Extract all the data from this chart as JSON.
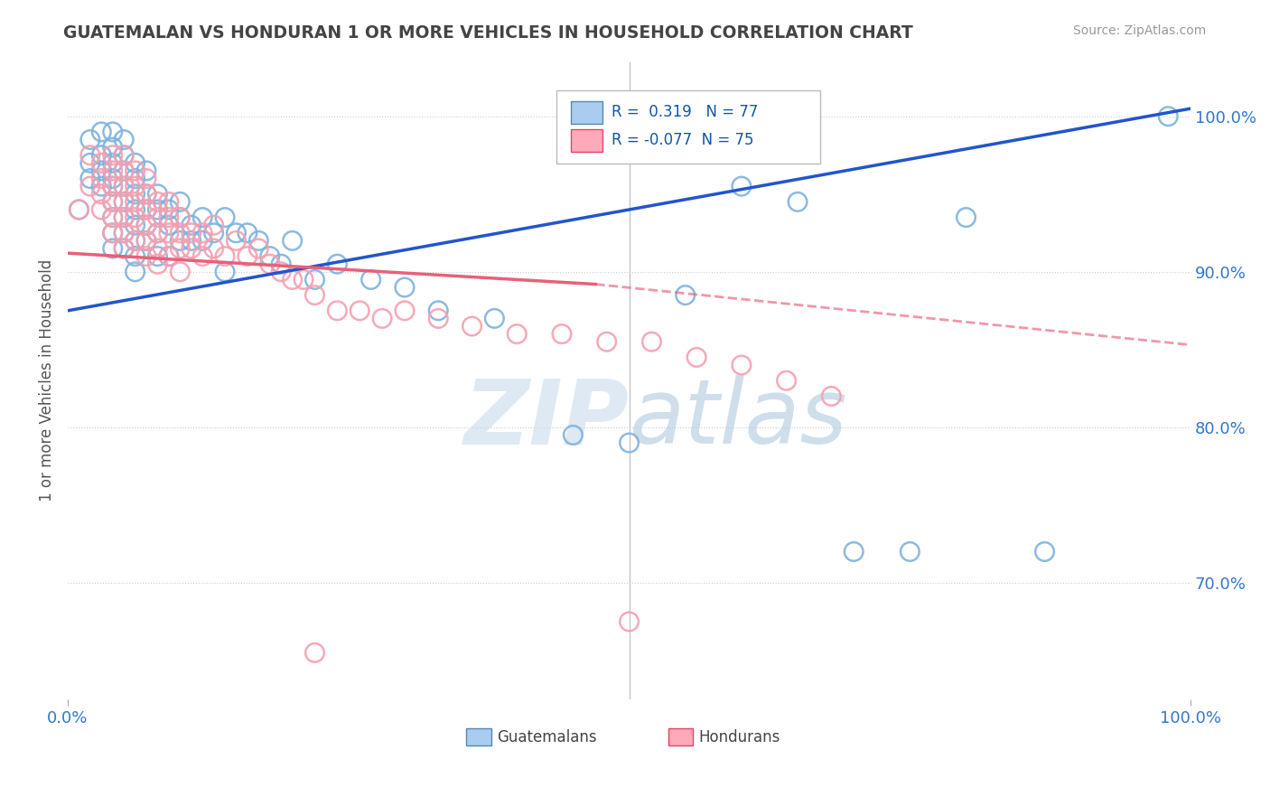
{
  "title": "GUATEMALAN VS HONDURAN 1 OR MORE VEHICLES IN HOUSEHOLD CORRELATION CHART",
  "source": "Source: ZipAtlas.com",
  "ylabel": "1 or more Vehicles in Household",
  "xlim": [
    0.0,
    1.0
  ],
  "ylim": [
    0.625,
    1.035
  ],
  "ytick_labels": [
    "70.0%",
    "80.0%",
    "90.0%",
    "100.0%"
  ],
  "ytick_positions": [
    0.7,
    0.8,
    0.9,
    1.0
  ],
  "grid_color": "#cccccc",
  "background_color": "#ffffff",
  "blue_scatter_color": "#7fb3e0",
  "pink_scatter_color": "#f5a0b0",
  "blue_line_color": "#2255cc",
  "pink_line_color": "#e8607a",
  "R_blue": 0.319,
  "N_blue": 77,
  "R_pink": -0.077,
  "N_pink": 75,
  "watermark_zip": "ZIP",
  "watermark_atlas": "atlas",
  "blue_x": [
    0.01,
    0.02,
    0.02,
    0.02,
    0.03,
    0.03,
    0.03,
    0.03,
    0.04,
    0.04,
    0.04,
    0.04,
    0.04,
    0.04,
    0.04,
    0.04,
    0.04,
    0.05,
    0.05,
    0.05,
    0.05,
    0.05,
    0.05,
    0.05,
    0.05,
    0.06,
    0.06,
    0.06,
    0.06,
    0.06,
    0.06,
    0.06,
    0.06,
    0.07,
    0.07,
    0.07,
    0.07,
    0.07,
    0.08,
    0.08,
    0.08,
    0.08,
    0.09,
    0.09,
    0.09,
    0.1,
    0.1,
    0.1,
    0.11,
    0.11,
    0.12,
    0.12,
    0.13,
    0.14,
    0.14,
    0.15,
    0.16,
    0.17,
    0.18,
    0.19,
    0.2,
    0.22,
    0.24,
    0.27,
    0.3,
    0.33,
    0.38,
    0.45,
    0.5,
    0.55,
    0.6,
    0.65,
    0.7,
    0.75,
    0.8,
    0.87,
    0.98
  ],
  "blue_y": [
    0.94,
    0.985,
    0.97,
    0.96,
    0.99,
    0.975,
    0.965,
    0.955,
    0.99,
    0.98,
    0.97,
    0.96,
    0.955,
    0.945,
    0.935,
    0.925,
    0.915,
    0.985,
    0.975,
    0.965,
    0.955,
    0.945,
    0.935,
    0.925,
    0.915,
    0.97,
    0.96,
    0.95,
    0.94,
    0.93,
    0.92,
    0.91,
    0.9,
    0.965,
    0.95,
    0.94,
    0.93,
    0.92,
    0.95,
    0.94,
    0.925,
    0.91,
    0.94,
    0.93,
    0.91,
    0.945,
    0.935,
    0.92,
    0.93,
    0.92,
    0.935,
    0.92,
    0.925,
    0.935,
    0.9,
    0.925,
    0.925,
    0.92,
    0.91,
    0.905,
    0.92,
    0.895,
    0.905,
    0.895,
    0.89,
    0.875,
    0.87,
    0.795,
    0.79,
    0.885,
    0.955,
    0.945,
    0.72,
    0.72,
    0.935,
    0.72,
    1.0
  ],
  "pink_x": [
    0.01,
    0.02,
    0.02,
    0.03,
    0.03,
    0.03,
    0.03,
    0.04,
    0.04,
    0.04,
    0.04,
    0.04,
    0.04,
    0.05,
    0.05,
    0.05,
    0.05,
    0.05,
    0.05,
    0.05,
    0.06,
    0.06,
    0.06,
    0.06,
    0.06,
    0.07,
    0.07,
    0.07,
    0.07,
    0.07,
    0.07,
    0.08,
    0.08,
    0.08,
    0.08,
    0.08,
    0.09,
    0.09,
    0.09,
    0.09,
    0.1,
    0.1,
    0.1,
    0.1,
    0.11,
    0.11,
    0.12,
    0.12,
    0.13,
    0.13,
    0.14,
    0.15,
    0.16,
    0.17,
    0.18,
    0.19,
    0.2,
    0.21,
    0.22,
    0.24,
    0.26,
    0.28,
    0.3,
    0.33,
    0.36,
    0.4,
    0.44,
    0.48,
    0.52,
    0.56,
    0.6,
    0.64,
    0.68,
    0.22,
    0.5
  ],
  "pink_y": [
    0.94,
    0.975,
    0.955,
    0.97,
    0.96,
    0.95,
    0.94,
    0.975,
    0.965,
    0.955,
    0.945,
    0.935,
    0.925,
    0.975,
    0.965,
    0.955,
    0.945,
    0.935,
    0.925,
    0.915,
    0.965,
    0.955,
    0.945,
    0.935,
    0.92,
    0.96,
    0.95,
    0.94,
    0.93,
    0.92,
    0.91,
    0.945,
    0.935,
    0.925,
    0.915,
    0.905,
    0.945,
    0.935,
    0.925,
    0.91,
    0.935,
    0.925,
    0.915,
    0.9,
    0.925,
    0.915,
    0.925,
    0.91,
    0.93,
    0.915,
    0.91,
    0.92,
    0.91,
    0.915,
    0.905,
    0.9,
    0.895,
    0.895,
    0.885,
    0.875,
    0.875,
    0.87,
    0.875,
    0.87,
    0.865,
    0.86,
    0.86,
    0.855,
    0.855,
    0.845,
    0.84,
    0.83,
    0.82,
    0.655,
    0.675
  ]
}
